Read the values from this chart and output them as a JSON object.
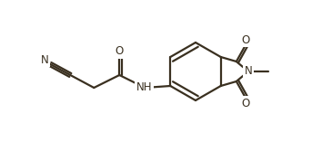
{
  "bg_color": "#ffffff",
  "line_color": "#3a3020",
  "line_width": 1.6,
  "font_size": 8.5,
  "atoms": {
    "N_ring": "N",
    "NH_amide": "NH",
    "O_top": "O",
    "O_bot": "O",
    "O_amide": "O",
    "N_nitrile": "N"
  },
  "figsize": [
    3.54,
    1.57
  ],
  "dpi": 100
}
